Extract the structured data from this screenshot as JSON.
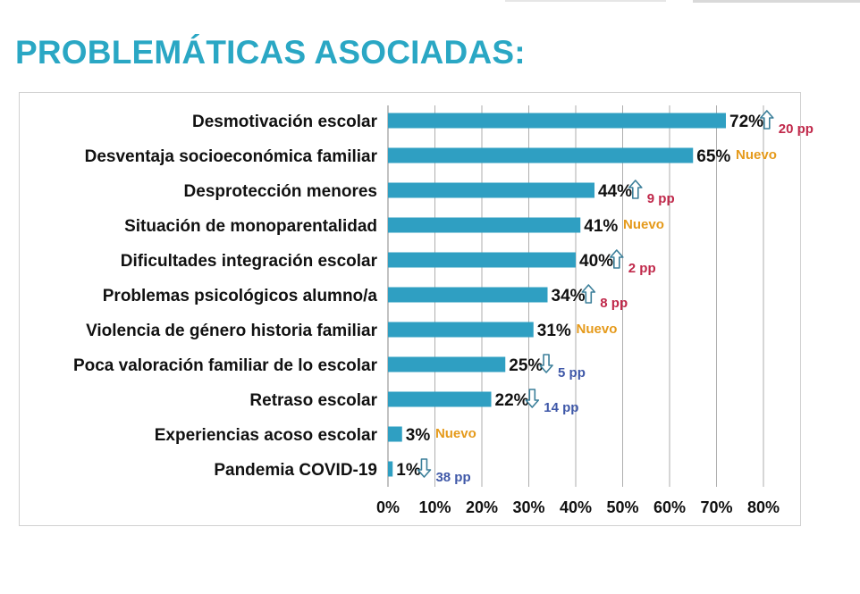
{
  "slide": {
    "title": "PROBLEMÁTICAS ASOCIADAS:"
  },
  "colors": {
    "title": "#2aa7c4",
    "bar": "#2f9fc2",
    "up_change": "#c0284a",
    "down_change": "#3f58a8",
    "new_tag": "#e59a1b",
    "arrow_stroke": "#3b7f9a",
    "grid": "#9a9a9a"
  },
  "chart_data": {
    "type": "bar",
    "orientation": "horizontal",
    "categories": [
      "Desmotivación escolar",
      "Desventaja socioeconómica familiar",
      "Desprotección menores",
      "Situación de monoparentalidad",
      "Dificultades integración escolar",
      "Problemas psicológicos alumno/a",
      "Violencia de género historia familiar",
      "Poca valoración familiar de lo escolar",
      "Retraso escolar",
      "Experiencias acoso escolar",
      "Pandemia COVID-19"
    ],
    "values": [
      72,
      65,
      44,
      41,
      40,
      34,
      31,
      25,
      22,
      3,
      1
    ],
    "value_labels": [
      "72%",
      "65%",
      "44%",
      "41%",
      "40%",
      "34%",
      "31%",
      "25%",
      "22%",
      "3%",
      "1%"
    ],
    "annotations": [
      {
        "kind": "up",
        "text": "20 pp"
      },
      {
        "kind": "new",
        "text": "Nuevo"
      },
      {
        "kind": "up",
        "text": "9 pp"
      },
      {
        "kind": "new",
        "text": "Nuevo"
      },
      {
        "kind": "up",
        "text": "2 pp"
      },
      {
        "kind": "up",
        "text": "8 pp"
      },
      {
        "kind": "new",
        "text": "Nuevo"
      },
      {
        "kind": "down",
        "text": "5 pp"
      },
      {
        "kind": "down",
        "text": "14 pp"
      },
      {
        "kind": "new",
        "text": "Nuevo"
      },
      {
        "kind": "down",
        "text": "38 pp"
      }
    ],
    "xlim": [
      0,
      80
    ],
    "x_ticks": [
      "0%",
      "10%",
      "20%",
      "30%",
      "40%",
      "50%",
      "60%",
      "70%",
      "80%"
    ],
    "grid": "vertical",
    "legend": "none"
  }
}
